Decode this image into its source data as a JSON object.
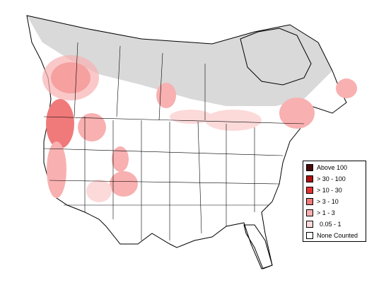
{
  "legend": {
    "items": [
      {
        "label": "Above 100",
        "color": "#4a0a0a"
      },
      {
        "label": "> 30 - 100",
        "color": "#b01010"
      },
      {
        "label": "> 10 - 30",
        "color": "#e83030"
      },
      {
        "label": "> 3 - 10",
        "color": "#f07a7a"
      },
      {
        "label": "> 1 - 3",
        "color": "#f8b0b0"
      },
      {
        "label": "0.05 - 1",
        "color": "#fcdada"
      },
      {
        "label": "None Counted",
        "color": "#ffffff"
      }
    ]
  },
  "colors": {
    "not_surveyed": "#d9d9d9",
    "boundary": "#000000",
    "background": "#ffffff"
  }
}
